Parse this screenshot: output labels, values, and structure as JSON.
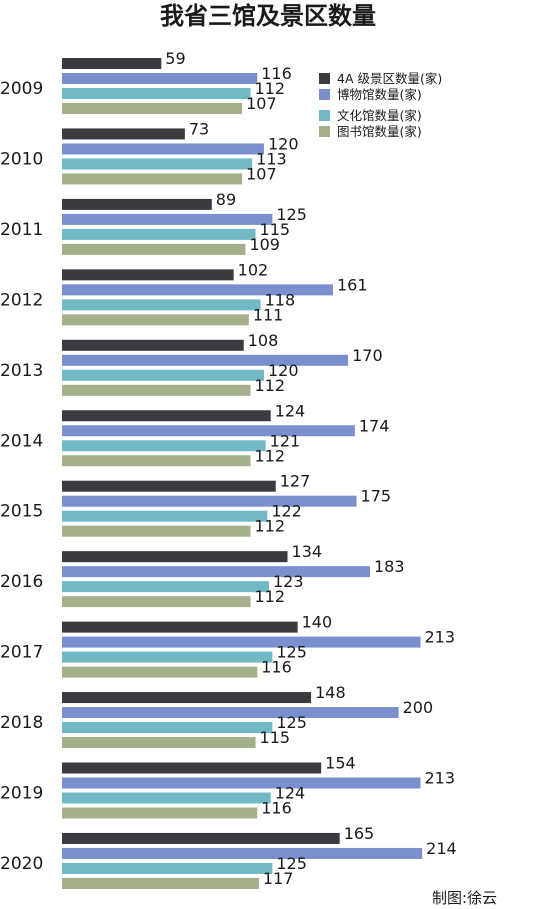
{
  "chart_data": {
    "type": "bar",
    "orientation": "horizontal",
    "title": "我省三馆及景区数量",
    "credit": "制图:徐云",
    "categories": [
      "2009",
      "2010",
      "2011",
      "2012",
      "2013",
      "2014",
      "2015",
      "2016",
      "2017",
      "2018",
      "2019",
      "2020"
    ],
    "series": [
      {
        "name": "4A 级景区数量(家)",
        "color": "#3a3a40",
        "values": [
          59,
          73,
          89,
          102,
          108,
          124,
          127,
          134,
          140,
          148,
          154,
          165
        ]
      },
      {
        "name": "博物馆数量(家)",
        "color": "#7b8fce",
        "values": [
          116,
          120,
          125,
          161,
          170,
          174,
          175,
          183,
          213,
          200,
          213,
          214
        ]
      },
      {
        "name": "文化馆数量(家)",
        "color": "#72b9c6",
        "values": [
          112,
          113,
          115,
          118,
          120,
          121,
          122,
          123,
          125,
          125,
          124,
          125
        ]
      },
      {
        "name": "图书馆数量(家)",
        "color": "#a3b08b",
        "values": [
          107,
          107,
          109,
          111,
          112,
          112,
          112,
          112,
          116,
          115,
          116,
          117
        ]
      }
    ],
    "legend_position": "top-right",
    "grid": false
  }
}
